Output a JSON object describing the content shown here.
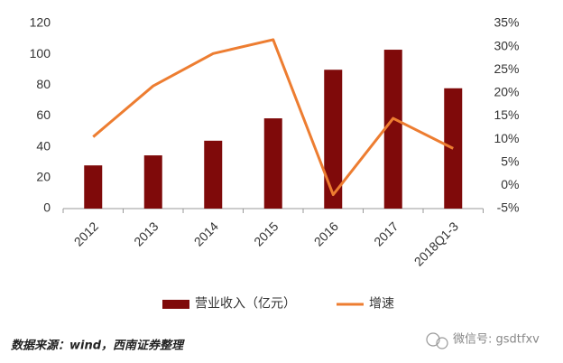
{
  "chart_data": {
    "type": "combo",
    "categories": [
      "2012",
      "2013",
      "2014",
      "2015",
      "2016",
      "2017",
      "2018Q1-3"
    ],
    "series": [
      {
        "name": "营业收入（亿元）",
        "type": "bar",
        "color": "#7f0a0a",
        "values": [
          28,
          34.5,
          44,
          58.5,
          90,
          103,
          78
        ]
      },
      {
        "name": "增速",
        "type": "line",
        "axis": "y2",
        "color": "#ed7d31",
        "values": [
          10.5,
          21.5,
          28.5,
          31.5,
          -2,
          14.5,
          8
        ]
      }
    ],
    "ylim": [
      0,
      120
    ],
    "yticks": [
      0,
      20,
      40,
      60,
      80,
      100,
      120
    ],
    "y2lim": [
      -5,
      35
    ],
    "y2ticks": [
      {
        "value": -5,
        "label": "-5%"
      },
      {
        "value": 0,
        "label": "0%"
      },
      {
        "value": 5,
        "label": "5%"
      },
      {
        "value": 10,
        "label": "10%"
      },
      {
        "value": 15,
        "label": "15%"
      },
      {
        "value": 20,
        "label": "20%"
      },
      {
        "value": 25,
        "label": "25%"
      },
      {
        "value": 30,
        "label": "30%"
      },
      {
        "value": 35,
        "label": "35%"
      }
    ],
    "grid": false,
    "source": "数据来源：wind，西南证券整理",
    "watermark": "微信号: gsdtfxv"
  }
}
